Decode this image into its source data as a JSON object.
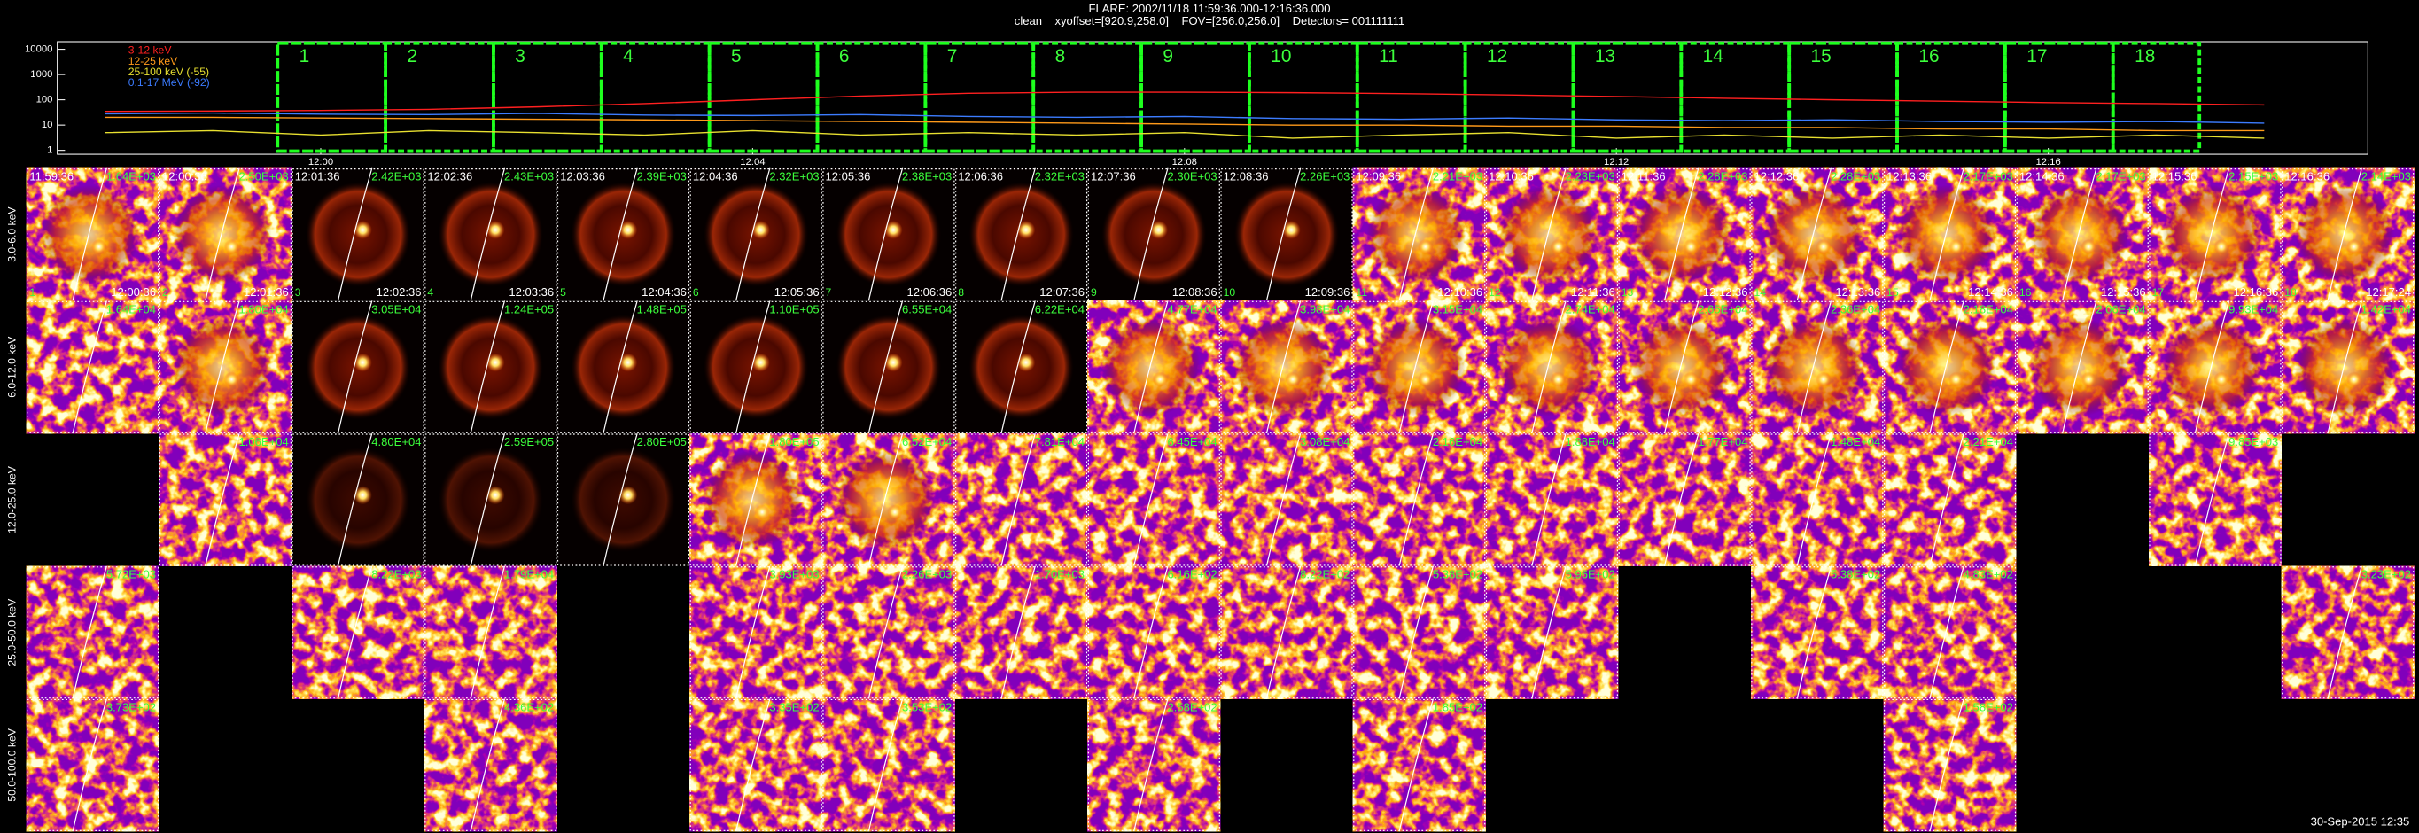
{
  "header": {
    "title": "FLARE: 2002/11/18 11:59:36.000-12:16:36.000",
    "subtitle": "clean    xyoffset=[920.9,258.0]    FOV=[256.0,256.0]    Detectors= 001111111"
  },
  "chart_data": {
    "type": "line",
    "log_y": true,
    "x": [
      -2,
      -1,
      0,
      1,
      2,
      3,
      4,
      5,
      6,
      7,
      8,
      9,
      10,
      11,
      12,
      13,
      14,
      15,
      16,
      17,
      18
    ],
    "xlim": [
      -2.44,
      18.96
    ],
    "xticks": [
      {
        "value": 0,
        "label": "12:00"
      },
      {
        "value": 4,
        "label": "12:04"
      },
      {
        "value": 8,
        "label": "12:08"
      },
      {
        "value": 12,
        "label": "12:12"
      },
      {
        "value": 16,
        "label": "12:16"
      }
    ],
    "ylim": [
      0.7,
      20000
    ],
    "yticks": [
      1,
      10,
      100,
      1000,
      10000
    ],
    "series": [
      {
        "name": "3-12 keV",
        "color": "#ff2020",
        "values": [
          35,
          36,
          38,
          42,
          52,
          70,
          100,
          140,
          180,
          200,
          200,
          190,
          175,
          155,
          135,
          115,
          100,
          88,
          78,
          70,
          63
        ]
      },
      {
        "name": "12-25 keV",
        "color": "#ff9a1a",
        "values": [
          20,
          20,
          19,
          18,
          17,
          16,
          15,
          14,
          13,
          12,
          11,
          10,
          10,
          9,
          9,
          8,
          8,
          7,
          7,
          6,
          6
        ]
      },
      {
        "name": "25-100 keV (-55)",
        "color": "#e8e030",
        "values": [
          5,
          6,
          4,
          6,
          5,
          4,
          6,
          4,
          5,
          4,
          5,
          3,
          4,
          5,
          3,
          4,
          3,
          4,
          3,
          4,
          3
        ]
      },
      {
        "name": "0.1-17 MeV (-92)",
        "color": "#3c7cff",
        "values": [
          28,
          30,
          27,
          26,
          29,
          25,
          24,
          26,
          22,
          20,
          22,
          18,
          17,
          19,
          16,
          15,
          16,
          14,
          13,
          14,
          12
        ]
      }
    ],
    "intervals": [
      1,
      2,
      3,
      4,
      5,
      6,
      7,
      8,
      9,
      10,
      11,
      12,
      13,
      14,
      15,
      16,
      17,
      18
    ]
  },
  "image_grid": {
    "start_times": [
      "11:59:36",
      "12:00:36",
      "12:01:36",
      "12:02:36",
      "12:03:36",
      "12:04:36",
      "12:05:36",
      "12:06:36",
      "12:07:36",
      "12:08:36",
      "12:09:36",
      "12:10:36",
      "12:11:36",
      "12:12:36",
      "12:13:36",
      "12:14:36",
      "12:15:36",
      "12:16:36"
    ],
    "end_times": [
      "12:00:36",
      "12:01:36",
      "12:02:36",
      "12:03:36",
      "12:04:36",
      "12:05:36",
      "12:06:36",
      "12:07:36",
      "12:08:36",
      "12:09:36",
      "12:10:36",
      "12:11:36",
      "12:12:36",
      "12:13:36",
      "12:14:36",
      "12:15:36",
      "12:16:36",
      "12:17:24"
    ],
    "rows": [
      {
        "energy": "3.0-6.0 keV",
        "peaks": [
          "1.64E+03",
          "2.50E+03",
          "2.42E+03",
          "2.43E+03",
          "2.39E+03",
          "2.32E+03",
          "2.38E+03",
          "2.32E+03",
          "2.30E+03",
          "2.26E+03",
          "2.21E+03",
          "2.23E+03",
          "2.28E+03",
          "2.28E+03",
          "2.17E+03",
          "2.17E+03",
          "2.15E+03",
          "2.14E+03"
        ]
      },
      {
        "energy": "6.0-12.0 keV",
        "peaks": [
          "1.64E+04",
          "1.80E+04",
          "3.05E+04",
          "1.24E+05",
          "1.48E+05",
          "1.10E+05",
          "6.55E+04",
          "6.22E+04",
          "4.77E+04",
          "3.98E+04",
          "3.15E+04",
          "2.74E+04",
          "2.65E+04",
          "2.36E+04",
          "2.18E+04",
          "2.06E+04",
          "9.93E+04",
          "1.42E+04"
        ]
      },
      {
        "energy": "12.0-25.0 keV",
        "peaks": [
          null,
          "1.06E+04",
          "4.80E+04",
          "2.59E+05",
          "2.80E+05",
          "1.80E+05",
          "6.52E+04",
          "7.81E+04",
          "6.45E+04",
          "3.08E+04",
          "2.16E+04",
          "1.88E+04",
          "1.77E+04",
          "1.48E+04",
          "2.21E+04",
          null,
          "9.85E+03",
          null
        ]
      },
      {
        "energy": "25.0-50.0 keV",
        "peaks": [
          "5.72E+03",
          null,
          "8.22E+03",
          "1.79E+04",
          null,
          "3.93E+03",
          "2.26E+03",
          "1.70E+03",
          "6.16E+02",
          "8.22E+02",
          "5.38E+02",
          "5.96E+02",
          null,
          "5.38E+02",
          "4.83E+02",
          null,
          null,
          "3.23E+02"
        ]
      },
      {
        "energy": "50.0-100.0 keV",
        "peaks": [
          "3.73E+02",
          null,
          null,
          "4.36E+02",
          null,
          "3.35E+02",
          "3.53E+02",
          null,
          "2.58E+02",
          null,
          "1.85E+02",
          null,
          null,
          null,
          "1.58E+02",
          null,
          null,
          null
        ]
      }
    ]
  },
  "footer": "30-Sep-2015 12:35"
}
